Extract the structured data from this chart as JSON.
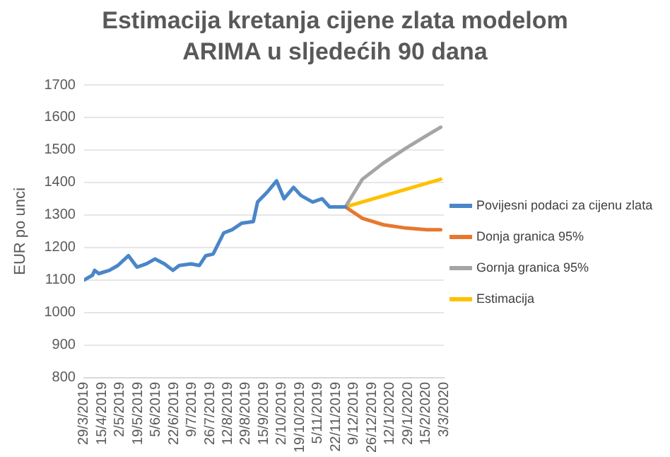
{
  "chart_data": {
    "type": "line",
    "title": "Estimacija kretanja cijene zlata modelom ARIMA u sljedećih 90 dana",
    "ylabel": "EUR po unci",
    "xlim": [
      "2019-03-29",
      "2020-03-03"
    ],
    "xticks": [
      {
        "value": "2019-03-29",
        "label": "29/3/2019"
      },
      {
        "value": "2019-04-15",
        "label": "15/4/2019"
      },
      {
        "value": "2019-05-02",
        "label": "2/5/2019"
      },
      {
        "value": "2019-05-19",
        "label": "19/5/2019"
      },
      {
        "value": "2019-06-05",
        "label": "5/6/2019"
      },
      {
        "value": "2019-06-22",
        "label": "22/6/2019"
      },
      {
        "value": "2019-07-09",
        "label": "9/7/2019"
      },
      {
        "value": "2019-07-26",
        "label": "26/7/2019"
      },
      {
        "value": "2019-08-12",
        "label": "12/8/2019"
      },
      {
        "value": "2019-08-29",
        "label": "29/8/2019"
      },
      {
        "value": "2019-09-15",
        "label": "15/9/2019"
      },
      {
        "value": "2019-10-02",
        "label": "2/10/2019"
      },
      {
        "value": "2019-10-19",
        "label": "19/10/2019"
      },
      {
        "value": "2019-11-05",
        "label": "5/11/2019"
      },
      {
        "value": "2019-11-22",
        "label": "22/11/2019"
      },
      {
        "value": "2019-12-09",
        "label": "9/12/2019"
      },
      {
        "value": "2019-12-26",
        "label": "26/12/2019"
      },
      {
        "value": "2020-01-12",
        "label": "12/1/2020"
      },
      {
        "value": "2020-01-29",
        "label": "29/1/2020"
      },
      {
        "value": "2020-02-15",
        "label": "15/2/2020"
      },
      {
        "value": "2020-03-03",
        "label": "3/3/2020"
      }
    ],
    "ylim": [
      800,
      1700
    ],
    "yticks": [
      800,
      900,
      1000,
      1100,
      1200,
      1300,
      1400,
      1500,
      1600,
      1700
    ],
    "grid": "y",
    "legend": "right",
    "marker": "none",
    "series": [
      {
        "name": "Povijesni podaci za cijenu zlata",
        "color": "#4a86c8",
        "x": [
          "2019-03-29",
          "2019-04-06",
          "2019-04-08",
          "2019-04-12",
          "2019-04-22",
          "2019-04-30",
          "2019-05-10",
          "2019-05-18",
          "2019-05-27",
          "2019-06-04",
          "2019-06-13",
          "2019-06-21",
          "2019-06-27",
          "2019-07-08",
          "2019-07-16",
          "2019-07-22",
          "2019-07-29",
          "2019-08-08",
          "2019-08-16",
          "2019-08-25",
          "2019-09-05",
          "2019-09-09",
          "2019-09-18",
          "2019-09-27",
          "2019-10-04",
          "2019-10-13",
          "2019-10-20",
          "2019-10-31",
          "2019-11-09",
          "2019-11-16",
          "2019-12-01"
        ],
        "values": [
          1100,
          1115,
          1130,
          1120,
          1130,
          1145,
          1175,
          1140,
          1150,
          1165,
          1150,
          1130,
          1145,
          1150,
          1145,
          1175,
          1180,
          1245,
          1255,
          1275,
          1280,
          1340,
          1370,
          1405,
          1350,
          1385,
          1360,
          1340,
          1350,
          1325,
          1325
        ]
      },
      {
        "name": "Donja granica 95%",
        "color": "#e8772e",
        "x": [
          "2019-12-01",
          "2019-12-17",
          "2020-01-06",
          "2020-01-27",
          "2020-02-16",
          "2020-02-29"
        ],
        "values": [
          1325,
          1290,
          1270,
          1260,
          1255,
          1255
        ]
      },
      {
        "name": "Gornja granica 95%",
        "color": "#a5a5a5",
        "x": [
          "2019-12-01",
          "2019-12-17",
          "2020-01-06",
          "2020-01-27",
          "2020-02-16",
          "2020-02-29"
        ],
        "values": [
          1325,
          1410,
          1460,
          1505,
          1545,
          1570
        ]
      },
      {
        "name": "Estimacija",
        "color": "#ffc000",
        "x": [
          "2019-12-01",
          "2020-02-29"
        ],
        "values": [
          1325,
          1410
        ]
      }
    ]
  }
}
